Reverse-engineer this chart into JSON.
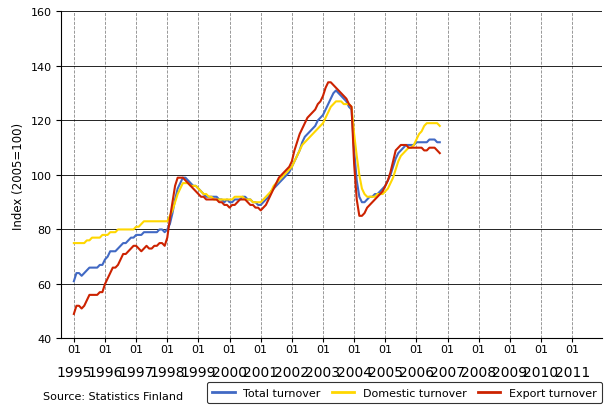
{
  "title": "",
  "ylabel": "Index (2005=100)",
  "source_text": "Source: Statistics Finland",
  "ylim": [
    40,
    160
  ],
  "yticks": [
    40,
    60,
    80,
    100,
    120,
    140,
    160
  ],
  "line_colors": {
    "total": "#4169C4",
    "domestic": "#FFD700",
    "export": "#CC2200"
  },
  "legend_labels": [
    "Total turnover",
    "Domestic turnover",
    "Export turnover"
  ],
  "start_year": 1995,
  "start_month": 1,
  "total_turnover": [
    61,
    64,
    64,
    63,
    64,
    65,
    66,
    66,
    66,
    66,
    67,
    67,
    69,
    70,
    72,
    72,
    72,
    73,
    74,
    75,
    75,
    76,
    77,
    77,
    78,
    78,
    78,
    79,
    79,
    79,
    79,
    79,
    79,
    80,
    80,
    79,
    80,
    82,
    86,
    91,
    95,
    97,
    99,
    99,
    98,
    97,
    96,
    96,
    95,
    94,
    93,
    92,
    92,
    92,
    92,
    92,
    91,
    91,
    90,
    91,
    90,
    90,
    91,
    91,
    91,
    92,
    92,
    91,
    91,
    90,
    90,
    89,
    89,
    90,
    91,
    92,
    94,
    95,
    96,
    97,
    98,
    99,
    100,
    101,
    103,
    105,
    107,
    109,
    112,
    114,
    115,
    116,
    117,
    118,
    120,
    121,
    122,
    124,
    126,
    128,
    130,
    131,
    130,
    129,
    128,
    127,
    125,
    124,
    109,
    98,
    92,
    90,
    90,
    91,
    92,
    92,
    93,
    93,
    94,
    95,
    96,
    98,
    100,
    103,
    106,
    108,
    109,
    110,
    111,
    111,
    111,
    111,
    112,
    112,
    112,
    112,
    112,
    113,
    113,
    113,
    112,
    112,
    0,
    0,
    0,
    0,
    0,
    0,
    0,
    0,
    0,
    0,
    0,
    0,
    0,
    0,
    0,
    0,
    0,
    0,
    0,
    0,
    0,
    0,
    0,
    0,
    0,
    0,
    0,
    0,
    0,
    0,
    0,
    0,
    0,
    0,
    0,
    0,
    0,
    0,
    0,
    0,
    0,
    0,
    0,
    0,
    0,
    0,
    0,
    0,
    0,
    0,
    0,
    0,
    0,
    0
  ],
  "domestic_turnover": [
    75,
    75,
    75,
    75,
    75,
    76,
    76,
    77,
    77,
    77,
    77,
    78,
    78,
    78,
    79,
    79,
    79,
    80,
    80,
    80,
    80,
    80,
    80,
    80,
    81,
    81,
    82,
    83,
    83,
    83,
    83,
    83,
    83,
    83,
    83,
    83,
    83,
    85,
    87,
    90,
    93,
    95,
    97,
    97,
    97,
    96,
    96,
    96,
    95,
    94,
    93,
    93,
    92,
    92,
    91,
    91,
    91,
    91,
    91,
    91,
    91,
    91,
    92,
    92,
    92,
    92,
    91,
    91,
    91,
    90,
    90,
    90,
    90,
    91,
    92,
    93,
    94,
    96,
    97,
    98,
    99,
    100,
    101,
    102,
    103,
    105,
    107,
    109,
    111,
    112,
    113,
    114,
    115,
    116,
    117,
    118,
    119,
    121,
    123,
    125,
    126,
    127,
    127,
    127,
    126,
    126,
    126,
    125,
    115,
    107,
    100,
    95,
    93,
    92,
    92,
    92,
    92,
    93,
    93,
    93,
    94,
    95,
    97,
    99,
    102,
    105,
    107,
    108,
    109,
    110,
    110,
    111,
    113,
    115,
    116,
    118,
    119,
    119,
    119,
    119,
    119,
    118,
    0,
    0,
    0,
    0,
    0,
    0,
    0,
    0,
    0,
    0,
    0,
    0,
    0,
    0,
    0,
    0,
    0,
    0,
    0,
    0,
    0,
    0,
    0,
    0,
    0,
    0,
    0,
    0,
    0,
    0,
    0,
    0,
    0,
    0,
    0,
    0,
    0,
    0,
    0,
    0,
    0,
    0,
    0,
    0,
    0,
    0,
    0,
    0,
    0,
    0,
    0,
    0,
    0,
    0
  ],
  "export_turnover": [
    49,
    52,
    52,
    51,
    52,
    54,
    56,
    56,
    56,
    56,
    57,
    57,
    60,
    62,
    64,
    66,
    66,
    67,
    69,
    71,
    71,
    72,
    73,
    74,
    74,
    73,
    72,
    73,
    74,
    73,
    73,
    74,
    74,
    75,
    75,
    74,
    77,
    84,
    90,
    96,
    99,
    99,
    99,
    98,
    97,
    96,
    95,
    94,
    93,
    92,
    92,
    91,
    91,
    91,
    91,
    91,
    90,
    90,
    89,
    89,
    88,
    89,
    89,
    90,
    91,
    91,
    91,
    90,
    89,
    89,
    88,
    88,
    87,
    88,
    89,
    91,
    93,
    95,
    97,
    99,
    100,
    101,
    102,
    103,
    105,
    109,
    112,
    115,
    117,
    119,
    121,
    122,
    123,
    124,
    126,
    127,
    129,
    132,
    134,
    134,
    133,
    132,
    131,
    130,
    129,
    128,
    126,
    125,
    104,
    91,
    85,
    85,
    86,
    88,
    89,
    90,
    91,
    92,
    93,
    94,
    96,
    98,
    101,
    105,
    109,
    110,
    111,
    111,
    111,
    110,
    110,
    110,
    110,
    110,
    110,
    109,
    109,
    110,
    110,
    110,
    109,
    108,
    0,
    0,
    0,
    0,
    0,
    0,
    0,
    0,
    0,
    0,
    0,
    0,
    0,
    0,
    0,
    0,
    0,
    0,
    0,
    0,
    0,
    0,
    0,
    0,
    0,
    0,
    0,
    0,
    0,
    0,
    0,
    0,
    0,
    0,
    0,
    0,
    0,
    0,
    0,
    0,
    0,
    0,
    0,
    0,
    0,
    0,
    0,
    0,
    0,
    0,
    0,
    0,
    0,
    0
  ],
  "n_data": 142
}
